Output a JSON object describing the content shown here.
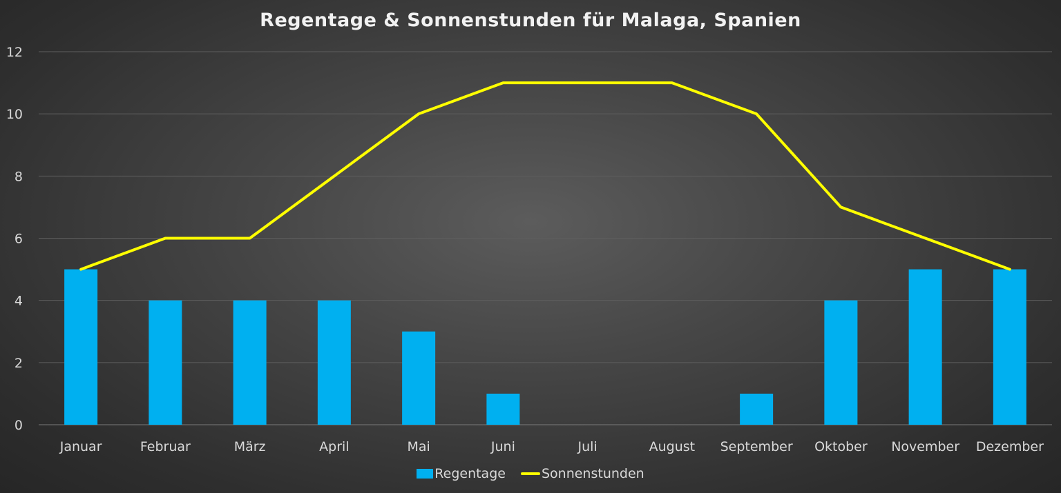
{
  "chart_data": {
    "type": "bar+line",
    "title": "Regentage & Sonnenstunden für Malaga, Spanien",
    "categories": [
      "Januar",
      "Februar",
      "März",
      "April",
      "Mai",
      "Juni",
      "Juli",
      "August",
      "September",
      "Oktober",
      "November",
      "Dezember"
    ],
    "series": [
      {
        "name": "Regentage",
        "type": "bar",
        "color": "#00b0f0",
        "values": [
          5,
          4,
          4,
          4,
          3,
          1,
          0,
          0,
          1,
          4,
          5,
          5
        ]
      },
      {
        "name": "Sonnenstunden",
        "type": "line",
        "color": "#ffff00",
        "values": [
          5,
          6,
          6,
          8,
          10,
          11,
          11,
          11,
          10,
          7,
          6,
          5
        ]
      }
    ],
    "ylim": [
      0,
      12
    ],
    "yticks": [
      0,
      2,
      4,
      6,
      8,
      10,
      12
    ],
    "grid": true,
    "legend": "bottom"
  }
}
